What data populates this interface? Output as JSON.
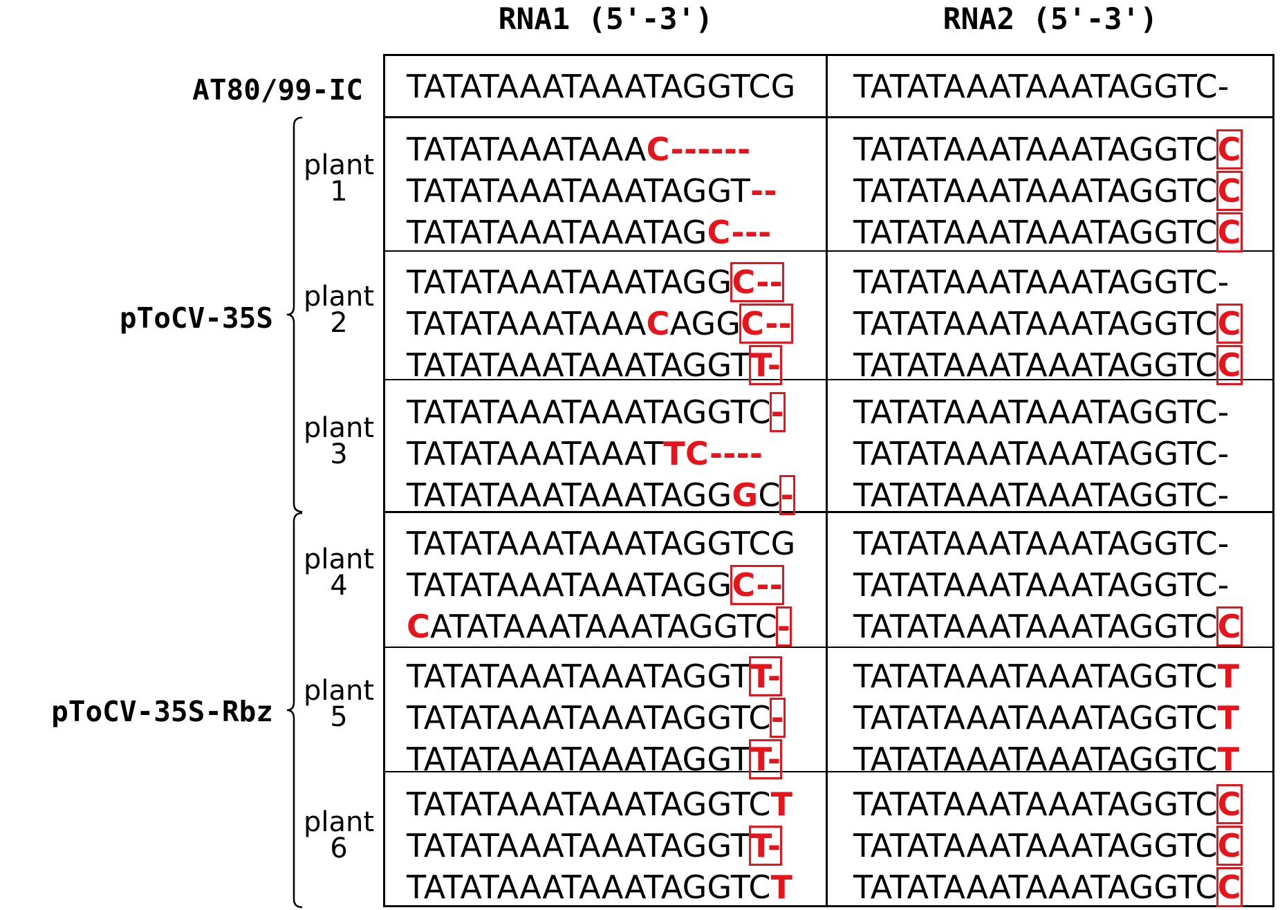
{
  "headers": {
    "rna1": "RNA1 (5'-3')",
    "rna2": "RNA2 (5'-3')"
  },
  "control": {
    "label": "AT80/99-IC",
    "rna1": [
      {
        "t": "TATATAAATAAATAGGTCG"
      }
    ],
    "rna2": [
      {
        "t": "TATATAAATAAATAGGTC-"
      }
    ]
  },
  "groups": [
    {
      "label": "pToCV-35S"
    },
    {
      "label": "pToCV-35S-Rbz"
    }
  ],
  "plants": [
    {
      "label": "plant\n1"
    },
    {
      "label": "plant\n2"
    },
    {
      "label": "plant\n3"
    },
    {
      "label": "plant\n4"
    },
    {
      "label": "plant\n5"
    },
    {
      "label": "plant\n6"
    }
  ],
  "rows": [
    {
      "rna1": [
        {
          "t": "TATATAAATAAA"
        },
        {
          "t": "C------",
          "red": true
        }
      ],
      "rna2": [
        {
          "t": "TATATAAATAAATAGGTC"
        },
        {
          "t": "C",
          "red": true,
          "box": true
        }
      ]
    },
    {
      "rna1": [
        {
          "t": "TATATAAATAAATAGGT"
        },
        {
          "t": "--",
          "red": true
        }
      ],
      "rna2": [
        {
          "t": "TATATAAATAAATAGGTC"
        },
        {
          "t": "C",
          "red": true,
          "box": true
        }
      ]
    },
    {
      "rna1": [
        {
          "t": "TATATAAATAAATAG"
        },
        {
          "t": "C---",
          "red": true
        }
      ],
      "rna2": [
        {
          "t": "TATATAAATAAATAGGTC"
        },
        {
          "t": "C",
          "red": true,
          "box": true
        }
      ]
    },
    {
      "rna1": [
        {
          "t": "TATATAAATAAATAGG"
        },
        {
          "t": "C--",
          "red": true,
          "box": true
        }
      ],
      "rna2": [
        {
          "t": "TATATAAATAAATAGGTC-"
        }
      ]
    },
    {
      "rna1": [
        {
          "t": "TATATAAATAAA"
        },
        {
          "t": "C",
          "red": true
        },
        {
          "t": "AGG"
        },
        {
          "t": "C--",
          "red": true,
          "box": true
        }
      ],
      "rna2": [
        {
          "t": "TATATAAATAAATAGGTC"
        },
        {
          "t": "C",
          "red": true,
          "box": true
        }
      ]
    },
    {
      "rna1": [
        {
          "t": "TATATAAATAAATAGGT"
        },
        {
          "t": "T-",
          "red": true,
          "box": true
        }
      ],
      "rna2": [
        {
          "t": "TATATAAATAAATAGGTC"
        },
        {
          "t": "C",
          "red": true,
          "box": true
        }
      ]
    },
    {
      "rna1": [
        {
          "t": "TATATAAATAAATAGGTC"
        },
        {
          "t": "-",
          "red": true,
          "box": true
        }
      ],
      "rna2": [
        {
          "t": "TATATAAATAAATAGGTC-"
        }
      ]
    },
    {
      "rna1": [
        {
          "t": "TATATAAATAAAT"
        },
        {
          "t": "TC----",
          "red": true
        }
      ],
      "rna2": [
        {
          "t": "TATATAAATAAATAGGTC-"
        }
      ]
    },
    {
      "rna1": [
        {
          "t": "TATATAAATAAATAGG"
        },
        {
          "t": "G",
          "red": true
        },
        {
          "t": "C"
        },
        {
          "t": "-",
          "red": true,
          "box": true
        }
      ],
      "rna2": [
        {
          "t": "TATATAAATAAATAGGTC-"
        }
      ]
    },
    {
      "rna1": [
        {
          "t": "TATATAAATAAATAGGTCG"
        }
      ],
      "rna2": [
        {
          "t": "TATATAAATAAATAGGTC-"
        }
      ]
    },
    {
      "rna1": [
        {
          "t": "TATATAAATAAATAGG"
        },
        {
          "t": "C--",
          "red": true,
          "box": true
        }
      ],
      "rna2": [
        {
          "t": "TATATAAATAAATAGGTC-"
        }
      ]
    },
    {
      "rna1": [
        {
          "t": "C",
          "red": true
        },
        {
          "t": "ATATAAATAAATAGGTC"
        },
        {
          "t": "-",
          "red": true,
          "box": true
        }
      ],
      "rna2": [
        {
          "t": "TATATAAATAAATAGGTC"
        },
        {
          "t": "C",
          "red": true,
          "box": true
        }
      ]
    },
    {
      "rna1": [
        {
          "t": "TATATAAATAAATAGGT"
        },
        {
          "t": "T-",
          "red": true,
          "box": true
        }
      ],
      "rna2": [
        {
          "t": "TATATAAATAAATAGGTC"
        },
        {
          "t": "T",
          "red": true
        }
      ]
    },
    {
      "rna1": [
        {
          "t": "TATATAAATAAATAGGTC"
        },
        {
          "t": "-",
          "red": true,
          "box": true
        }
      ],
      "rna2": [
        {
          "t": "TATATAAATAAATAGGTC"
        },
        {
          "t": "T",
          "red": true
        }
      ]
    },
    {
      "rna1": [
        {
          "t": "TATATAAATAAATAGGT"
        },
        {
          "t": "T-",
          "red": true,
          "box": true
        }
      ],
      "rna2": [
        {
          "t": "TATATAAATAAATAGGTC"
        },
        {
          "t": "T",
          "red": true
        }
      ]
    },
    {
      "rna1": [
        {
          "t": "TATATAAATAAATAGGTC"
        },
        {
          "t": "T",
          "red": true
        }
      ],
      "rna2": [
        {
          "t": "TATATAAATAAATAGGTC"
        },
        {
          "t": "C",
          "red": true,
          "box": true
        }
      ]
    },
    {
      "rna1": [
        {
          "t": "TATATAAATAAATAGGT"
        },
        {
          "t": "T-",
          "red": true,
          "box": true
        }
      ],
      "rna2": [
        {
          "t": "TATATAAATAAATAGGTC"
        },
        {
          "t": "C",
          "red": true,
          "box": true
        }
      ]
    },
    {
      "rna1": [
        {
          "t": "TATATAAATAAATAGGTC"
        },
        {
          "t": "T",
          "red": true
        }
      ],
      "rna2": [
        {
          "t": "TATATAAATAAATAGGTC"
        },
        {
          "t": "C",
          "red": true,
          "box": true
        }
      ]
    }
  ],
  "colors": {
    "highlight": "#e8141b",
    "text": "#000000"
  }
}
